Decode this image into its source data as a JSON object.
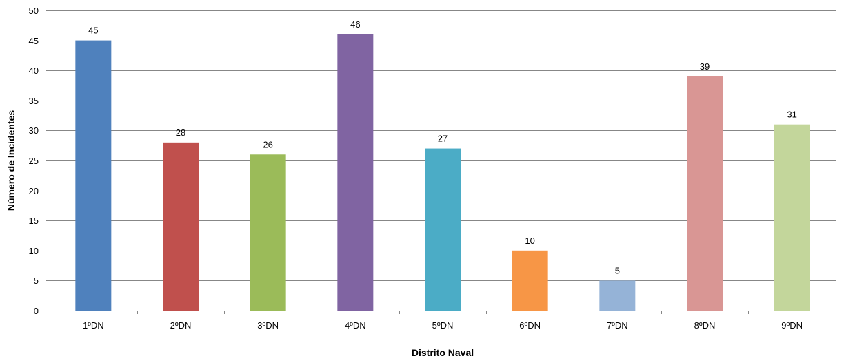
{
  "chart_data": {
    "type": "bar",
    "title": "",
    "xlabel": "Distrito Naval",
    "ylabel": "Número de Incidentes",
    "categories": [
      "1ºDN",
      "2ºDN",
      "3ºDN",
      "4ºDN",
      "5ºDN",
      "6ºDN",
      "7ºDN",
      "8ºDN",
      "9ºDN"
    ],
    "values": [
      45,
      28,
      26,
      46,
      27,
      10,
      5,
      39,
      31
    ],
    "data_labels": [
      "45",
      "28",
      "26",
      "46",
      "27",
      "10",
      "5",
      "39",
      "31"
    ],
    "colors": [
      "#4F81BD",
      "#C0504D",
      "#9BBB59",
      "#8064A2",
      "#4BACC6",
      "#F79646",
      "#95B3D7",
      "#D99694",
      "#C3D69B"
    ],
    "ylim": [
      0,
      50
    ],
    "yticks": [
      0,
      5,
      10,
      15,
      20,
      25,
      30,
      35,
      40,
      45,
      50
    ],
    "ytick_labels": [
      "0",
      "5",
      "10",
      "15",
      "20",
      "25",
      "30",
      "35",
      "40",
      "45",
      "50"
    ],
    "grid": true,
    "legend": "none"
  }
}
